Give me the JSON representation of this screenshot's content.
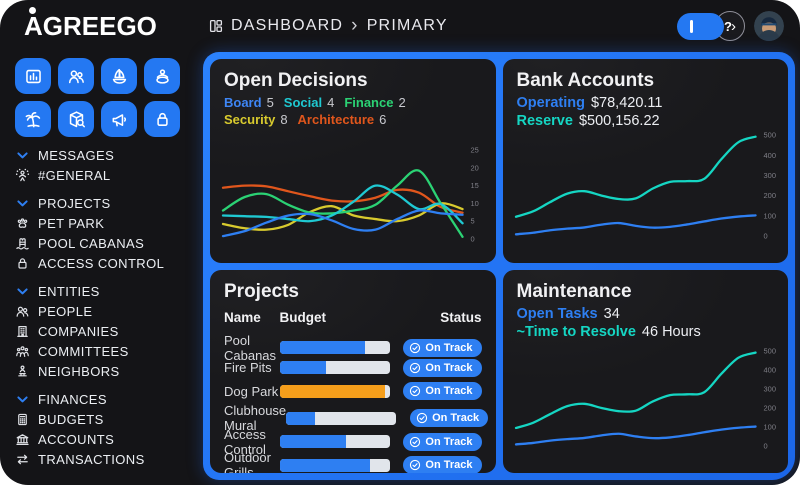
{
  "header": {
    "logo": "AGREEGO",
    "breadcrumb": [
      "DASHBOARD",
      "PRIMARY"
    ],
    "help": {
      "question": "?",
      "chevron": "›"
    }
  },
  "colors": {
    "accent_blue": "#2e7ff2",
    "panel_blue": "#1f6ff0",
    "teal": "#15d6c3",
    "orange_bar": "#f59e1b",
    "card_bg": "#19191c"
  },
  "sidebar": {
    "quick_buttons": [
      {
        "icon": "report"
      },
      {
        "icon": "people"
      },
      {
        "icon": "sailboat"
      },
      {
        "icon": "float"
      },
      {
        "icon": "palm"
      },
      {
        "icon": "package-search"
      },
      {
        "icon": "megaphone"
      },
      {
        "icon": "lock"
      }
    ],
    "sections": [
      {
        "label": "MESSAGES",
        "items": [
          {
            "icon": "celebration",
            "label": "#GENERAL"
          }
        ]
      },
      {
        "label": "PROJECTS",
        "items": [
          {
            "icon": "paw",
            "label": "PET PARK"
          },
          {
            "icon": "pool-ladder",
            "label": "POOL CABANAS"
          },
          {
            "icon": "lock",
            "label": "ACCESS CONTROL"
          }
        ]
      },
      {
        "label": "ENTITIES",
        "items": [
          {
            "icon": "people",
            "label": "PEOPLE"
          },
          {
            "icon": "building",
            "label": "COMPANIES"
          },
          {
            "icon": "committees",
            "label": "COMMITTEES"
          },
          {
            "icon": "neighbors",
            "label": "NEIGHBORS"
          }
        ]
      },
      {
        "label": "FINANCES",
        "items": [
          {
            "icon": "budgets",
            "label": "BUDGETS"
          },
          {
            "icon": "bank",
            "label": "ACCOUNTS"
          },
          {
            "icon": "transactions",
            "label": "TRANSACTIONS"
          }
        ]
      }
    ]
  },
  "cards": {
    "open_decisions": {
      "title": "Open Decisions",
      "legend": [
        {
          "label": "Board",
          "value": "5",
          "color": "#3e86f5"
        },
        {
          "label": "Social",
          "value": "4",
          "color": "#1fc9d2"
        },
        {
          "label": "Finance",
          "value": "2",
          "color": "#2bd274"
        },
        {
          "label": "Security",
          "value": "8",
          "color": "#d8ca2e"
        },
        {
          "label": "Architecture",
          "value": "6",
          "color": "#e0561c"
        }
      ]
    },
    "bank_accounts": {
      "title": "Bank Accounts",
      "stats": [
        {
          "label": "Operating",
          "value": "$78,420.11",
          "color": "#2e7ff2"
        },
        {
          "label": "Reserve",
          "value": "$500,156.22",
          "color": "#15d6c3"
        }
      ]
    },
    "projects": {
      "title": "Projects",
      "columns": [
        "Name",
        "Budget",
        "Status"
      ],
      "rows": [
        {
          "name": "Pool Cabanas",
          "budget_pct": 78,
          "bar_color": "#2e7ff2",
          "status": "On Track"
        },
        {
          "name": "Fire Pits",
          "budget_pct": 42,
          "bar_color": "#2e7ff2",
          "status": "On Track"
        },
        {
          "name": "Dog Park",
          "budget_pct": 96,
          "bar_color": "#f59e1b",
          "status": "On Track"
        },
        {
          "name": "Clubhouse Mural",
          "budget_pct": 26,
          "bar_color": "#2e7ff2",
          "status": "On Track"
        },
        {
          "name": "Access Control",
          "budget_pct": 60,
          "bar_color": "#2e7ff2",
          "status": "On Track"
        },
        {
          "name": "Outdoor Grills",
          "budget_pct": 82,
          "bar_color": "#2e7ff2",
          "status": "On Track"
        }
      ]
    },
    "maintenance": {
      "title": "Maintenance",
      "stats": [
        {
          "label": "Open Tasks",
          "value": "34",
          "color": "#2e7ff2"
        },
        {
          "label": "~Time to Resolve",
          "value": "46 Hours",
          "color": "#15d6c3"
        }
      ]
    }
  },
  "chart_data": [
    {
      "id": "open_decisions",
      "type": "line",
      "title": "Open Decisions",
      "ylim": [
        0,
        25
      ],
      "yticks": [
        25,
        20,
        15,
        10,
        5,
        0
      ],
      "x_axis": "hidden",
      "grid": false,
      "legend_position": "top-left",
      "series": [
        {
          "name": "Board",
          "color": "#2e7ff2",
          "values": [
            0.8,
            2.2,
            4.6,
            6.6,
            7.0,
            5.2,
            2.8,
            2.6,
            5.6,
            8.0,
            7.2,
            6.8
          ]
        },
        {
          "name": "Social",
          "color": "#1fc9d2",
          "values": [
            6.6,
            6.4,
            6.2,
            5.6,
            5.0,
            6.6,
            10.5,
            15.0,
            12.5,
            8.4,
            9.8,
            4.4
          ]
        },
        {
          "name": "Finance",
          "color": "#2bd274",
          "values": [
            8.0,
            11.8,
            12.6,
            9.6,
            7.4,
            7.2,
            8.0,
            9.6,
            15.0,
            19.2,
            10.0,
            0.6
          ]
        },
        {
          "name": "Security",
          "color": "#d8ca2e",
          "values": [
            4.2,
            3.0,
            2.6,
            4.0,
            7.6,
            9.2,
            6.6,
            5.6,
            5.0,
            6.6,
            10.0,
            8.4
          ]
        },
        {
          "name": "Architecture",
          "color": "#e0561c",
          "values": [
            14.4,
            15.0,
            14.8,
            13.4,
            12.0,
            10.8,
            10.6,
            11.6,
            13.8,
            13.0,
            9.0,
            7.4
          ]
        }
      ]
    },
    {
      "id": "bank_accounts",
      "type": "line",
      "title": "Bank Accounts",
      "ylim": [
        0,
        500
      ],
      "yticks": [
        500,
        400,
        300,
        200,
        100,
        0
      ],
      "x_axis": "hidden",
      "grid": false,
      "series": [
        {
          "name": "Reserve",
          "color": "#15d6c3",
          "values": [
            95,
            122,
            168,
            210,
            222,
            200,
            183,
            186,
            235,
            268,
            272,
            283,
            380,
            465,
            492
          ]
        },
        {
          "name": "Operating",
          "color": "#2e7ff2",
          "values": [
            8,
            16,
            28,
            36,
            42,
            56,
            64,
            50,
            41,
            45,
            57,
            72,
            86,
            96,
            102
          ]
        }
      ]
    },
    {
      "id": "maintenance",
      "type": "line",
      "title": "Maintenance",
      "ylim": [
        0,
        500
      ],
      "yticks": [
        500,
        400,
        300,
        200,
        100,
        0
      ],
      "x_axis": "hidden",
      "grid": false,
      "series": [
        {
          "name": "Reserve",
          "color": "#15d6c3",
          "values": [
            95,
            122,
            168,
            210,
            222,
            200,
            183,
            186,
            235,
            268,
            272,
            283,
            380,
            465,
            492
          ]
        },
        {
          "name": "Operating",
          "color": "#2e7ff2",
          "values": [
            8,
            16,
            28,
            36,
            42,
            56,
            64,
            50,
            41,
            45,
            57,
            72,
            86,
            96,
            102
          ]
        }
      ]
    }
  ]
}
